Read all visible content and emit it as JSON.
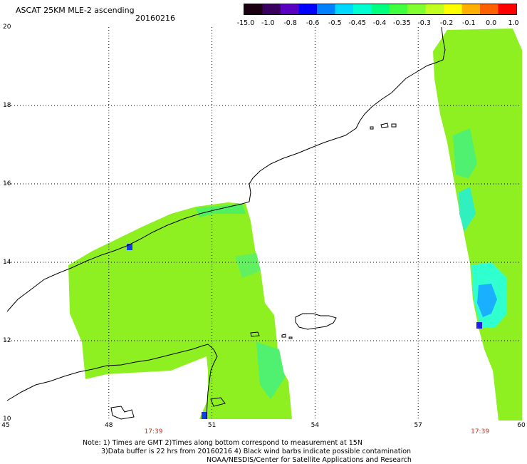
{
  "header": {
    "title": "ASCAT 25KM MLE-2 ascending",
    "date": "20160216"
  },
  "colorbar": {
    "colors": [
      "#1a0010",
      "#3a0060",
      "#5a00c0",
      "#0000ff",
      "#0080ff",
      "#00d8ff",
      "#00ffd0",
      "#00ff80",
      "#40ff40",
      "#80ff30",
      "#c0ff20",
      "#ffff00",
      "#ffb000",
      "#ff6000",
      "#ff0000"
    ],
    "labels": [
      "-15.0",
      "-1.0",
      "-0.8",
      "-0.6",
      "-0.5",
      "-0.45",
      "-0.4",
      "-0.35",
      "-0.3",
      "-0.2",
      "-0.1",
      "0.0",
      "1.0"
    ]
  },
  "map": {
    "lon_range": [
      45,
      60
    ],
    "lat_range": [
      10,
      20
    ],
    "x_ticks": [
      "45",
      "48",
      "51",
      "54",
      "57",
      "60"
    ],
    "y_ticks": [
      "20",
      "18",
      "16",
      "14",
      "12",
      "10"
    ],
    "pass_times": [
      "17:39",
      "17:39"
    ]
  },
  "notes": {
    "line1": "Note: 1) Times are GMT 2)Times along bottom correspond to measurement at 15N",
    "line2": "3)Data buffer is 22 hrs from 20160216 4) Black wind barbs indicate possible contamination",
    "line3": "NOAA/NESDIS/Center for Satellite Applications and Research"
  }
}
